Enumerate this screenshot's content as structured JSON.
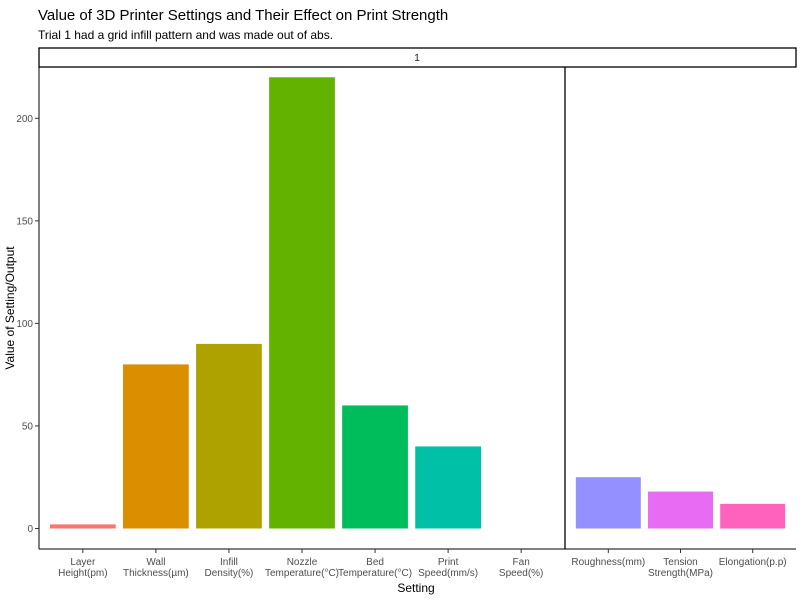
{
  "chart_data": {
    "type": "bar",
    "title": "Value of 3D Printer Settings and Their Effect on Print Strength",
    "subtitle": "Trial 1 had a grid infill pattern and was made out of abs.",
    "strip_label": "1",
    "xlabel": "Setting",
    "ylabel": "Value of Setting/Output",
    "ylim": [
      -10,
      225
    ],
    "yticks": [
      0,
      50,
      100,
      150,
      200
    ],
    "grid": false,
    "panels": [
      {
        "name": "settings",
        "categories": [
          "Layer\nHeight(pm)",
          "Wall\nThickness(µm)",
          "Infill\nDensity(%)",
          "Nozzle\nTemperature(°C)",
          "Bed\nTemperature(°C)",
          "Print\nSpeed(mm/s)",
          "Fan\nSpeed(%)"
        ],
        "values": [
          2,
          80,
          90,
          220,
          60,
          40,
          0
        ],
        "colors": [
          "#F8766D",
          "#DB8E00",
          "#AEA200",
          "#64B200",
          "#00BD5C",
          "#00C1A7",
          "#00BADE"
        ]
      },
      {
        "name": "outputs",
        "categories": [
          "Roughness(mm)",
          "Tension\nStrength(MPa)",
          "Elongation(p.p)"
        ],
        "values": [
          25,
          18,
          12
        ],
        "colors": [
          "#9590FF",
          "#E76BF3",
          "#FF62BC"
        ]
      }
    ]
  }
}
